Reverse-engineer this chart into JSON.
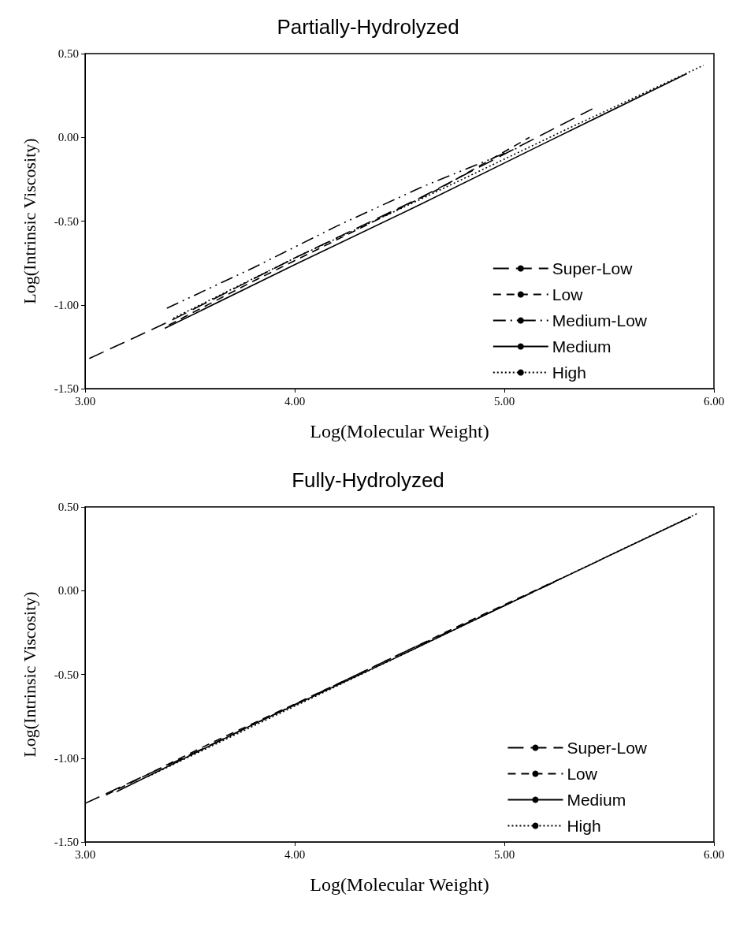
{
  "chart_data": [
    {
      "type": "line",
      "title": "Partially-Hydrolyzed",
      "xlabel": "Log(Molecular Weight)",
      "ylabel": "Log(Intrinsic Viscosity)",
      "xlim": [
        3,
        6
      ],
      "ylim": [
        -1.5,
        0.5
      ],
      "xticks": [
        {
          "value": 3,
          "label": "3.00"
        },
        {
          "value": 4,
          "label": "4.00"
        },
        {
          "value": 5,
          "label": "5.00"
        },
        {
          "value": 6,
          "label": "6.00"
        }
      ],
      "yticks": [
        {
          "value": -1.5,
          "label": "-1.50"
        },
        {
          "value": -1,
          "label": "-1.00"
        },
        {
          "value": -0.5,
          "label": "-0.50"
        },
        {
          "value": 0,
          "label": "0.00"
        },
        {
          "value": 0.5,
          "label": "0.50"
        }
      ],
      "grid": false,
      "legend": "bottom right",
      "marker": "none",
      "series": [
        {
          "name": "Super-Low",
          "color": "#000000",
          "line_style": "longdash",
          "x": [
            3.02,
            3.4,
            4.0,
            4.6,
            5.0,
            5.42
          ],
          "values": [
            -1.32,
            -1.1,
            -0.72,
            -0.36,
            -0.1,
            0.17
          ]
        },
        {
          "name": "Low",
          "color": "#000000",
          "line_style": "dashed",
          "x": [
            3.4,
            3.8,
            4.3,
            4.7,
            5.12
          ],
          "values": [
            -1.12,
            -0.86,
            -0.55,
            -0.3,
            0.0
          ]
        },
        {
          "name": "Medium-Low",
          "color": "#000000",
          "line_style": "dashdot",
          "x": [
            3.39,
            3.8,
            4.2,
            4.6,
            5.07
          ],
          "values": [
            -1.02,
            -0.78,
            -0.53,
            -0.3,
            -0.06
          ]
        },
        {
          "name": "Medium",
          "color": "#000000",
          "line_style": "solid",
          "x": [
            3.38,
            4.0,
            4.6,
            5.2,
            5.87
          ],
          "values": [
            -1.14,
            -0.76,
            -0.4,
            -0.03,
            0.38
          ]
        },
        {
          "name": "High",
          "color": "#000000",
          "line_style": "dotted",
          "x": [
            3.42,
            4.0,
            4.6,
            5.3,
            5.95
          ],
          "values": [
            -1.08,
            -0.72,
            -0.37,
            0.05,
            0.43
          ]
        }
      ]
    },
    {
      "type": "line",
      "title": "Fully-Hydrolyzed",
      "xlabel": "Log(Molecular Weight)",
      "ylabel": "Log(Intrinsic Viscosity)",
      "xlim": [
        3,
        6
      ],
      "ylim": [
        -1.5,
        0.5
      ],
      "xticks": [
        {
          "value": 3,
          "label": "3.00"
        },
        {
          "value": 4,
          "label": "4.00"
        },
        {
          "value": 5,
          "label": "5.00"
        },
        {
          "value": 6,
          "label": "6.00"
        }
      ],
      "yticks": [
        {
          "value": -1.5,
          "label": "-1.50"
        },
        {
          "value": -1,
          "label": "-1.00"
        },
        {
          "value": -0.5,
          "label": "-0.50"
        },
        {
          "value": 0,
          "label": "0.00"
        },
        {
          "value": 0.5,
          "label": "0.50"
        }
      ],
      "grid": false,
      "legend": "bottom right",
      "marker": "none",
      "series": [
        {
          "name": "Super-Low",
          "color": "#000000",
          "line_style": "longdash",
          "x": [
            3.0,
            3.5,
            4.0,
            4.5,
            5.0,
            5.27
          ],
          "values": [
            -1.27,
            -0.98,
            -0.68,
            -0.38,
            -0.09,
            0.07
          ]
        },
        {
          "name": "Low",
          "color": "#000000",
          "line_style": "dashed",
          "x": [
            3.1,
            3.6,
            4.2,
            4.8,
            5.3
          ],
          "values": [
            -1.22,
            -0.91,
            -0.56,
            -0.2,
            0.09
          ]
        },
        {
          "name": "Medium",
          "color": "#000000",
          "line_style": "solid",
          "x": [
            3.15,
            3.8,
            4.5,
            5.2,
            5.89
          ],
          "values": [
            -1.2,
            -0.8,
            -0.39,
            0.03,
            0.44
          ]
        },
        {
          "name": "High",
          "color": "#000000",
          "line_style": "dotted",
          "x": [
            3.3,
            4.0,
            4.7,
            5.4,
            5.92
          ],
          "values": [
            -1.11,
            -0.69,
            -0.27,
            0.15,
            0.46
          ]
        }
      ]
    }
  ]
}
